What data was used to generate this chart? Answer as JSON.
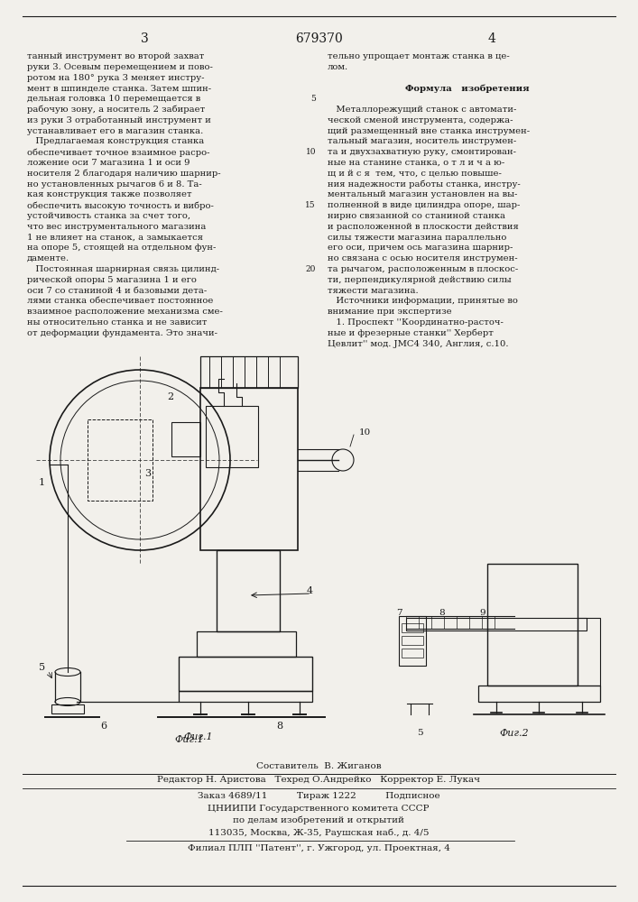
{
  "patent_number": "679370",
  "background_color": "#f2f0eb",
  "text_color": "#1a1a1a",
  "page_left": "3",
  "page_right": "4",
  "left_col_text": [
    [
      "танный инструмент во второй захват",
      false
    ],
    [
      "руки 3. Осевым перемещением и пово-",
      false
    ],
    [
      "ротом на 180° рука 3 меняет инстру-",
      false
    ],
    [
      "мент в шпинделе станка. Затем шпин-",
      false
    ],
    [
      "дельная головка 10 перемещается в",
      false
    ],
    [
      "рабочую зону, а носитель 2 забирает",
      false
    ],
    [
      "из руки 3 отработанный инструмент и",
      false
    ],
    [
      "устанавливает его в магазин станка.",
      false
    ],
    [
      "   Предлагаемая конструкция станка",
      false
    ],
    [
      "обеспечивает точное взаимное расpo-",
      false
    ],
    [
      "ложение оси 7 магазина 1 и оси 9",
      false
    ],
    [
      "носителя 2 благодаря наличию шарнир-",
      false
    ],
    [
      "но установленных рычагов 6 и 8. Та-",
      false
    ],
    [
      "кая конструкция также позволяет",
      false
    ],
    [
      "обеспечить высокую точность и вибро-",
      false
    ],
    [
      "устойчивость станка за счет того,",
      false
    ],
    [
      "что вес инструментального магазина",
      false
    ],
    [
      "1 не влияет на станок, а замыкается",
      false
    ],
    [
      "на опоре 5, стоящей на отдельном фун-",
      false
    ],
    [
      "даменте.",
      false
    ],
    [
      "   Постоянная шарнирная связь цилинд-",
      false
    ],
    [
      "рической опоры 5 магазина 1 и его",
      false
    ],
    [
      "оси 7 со станиной 4 и базовыми дета-",
      false
    ],
    [
      "лями станка обеспечивает постоянное",
      false
    ],
    [
      "взаимное расположение механизма сме-",
      false
    ],
    [
      "ны относительно станка и не зависит",
      false
    ],
    [
      "от деформации фундамента. Это значи-",
      false
    ]
  ],
  "right_col_text": [
    [
      "тельно упрощает монтаж станка в це-",
      false
    ],
    [
      "лом.",
      false
    ],
    [
      "",
      false
    ],
    [
      "     Формула   изобретения",
      true
    ],
    [
      "",
      false
    ],
    [
      "   Металлорежущий станок с автомати-",
      false
    ],
    [
      "ческой сменой инструмента, содержа-",
      false
    ],
    [
      "щий размещенный вне станка инструмен-",
      false
    ],
    [
      "тальный магазин, носитель инструмен-",
      false
    ],
    [
      "та и двухзахватную руку, смонтирован-",
      false
    ],
    [
      "ные на станине станка, о т л и ч а ю-",
      false
    ],
    [
      "щ и й с я  тем, что, с целью повыше-",
      false
    ],
    [
      "ния надежности работы станка, инстру-",
      false
    ],
    [
      "ментальный магазин установлен на вы-",
      false
    ],
    [
      "полненной в виде цилиндра опоре, шар-",
      false
    ],
    [
      "нирно связанной со станиной станка",
      false
    ],
    [
      "и расположенной в плоскости действия",
      false
    ],
    [
      "силы тяжести магазина параллельно",
      false
    ],
    [
      "его оси, причем ось магазина шарнир-",
      false
    ],
    [
      "но связана с осью носителя инструмен-",
      false
    ],
    [
      "та рычагом, расположенным в плоскос-",
      false
    ],
    [
      "ти, перпендикулярной действию силы",
      false
    ],
    [
      "тяжести магазина.",
      false
    ],
    [
      "   Источники информации, принятые во",
      false
    ],
    [
      "внимание при экспертизе",
      false
    ],
    [
      "   1. Проспект ''Координатно-расточ-",
      false
    ],
    [
      "ные и фрезерные станки'' Херберт",
      false
    ],
    [
      "Цевлит'' мод. JMC4 340, Англия, с.10.",
      false
    ]
  ],
  "line_numbers": [
    [
      5,
      5
    ],
    [
      10,
      10
    ],
    [
      15,
      15
    ],
    [
      20,
      20
    ]
  ],
  "composer": "Составитель  В. Жиганов",
  "editor": "Редактор Н. Аристова   Техред О.Андрейко   Корректор Е. Лукач",
  "order": "Заказ 4689/11          Тираж 1222          Подписное",
  "institute": "ЦНИИПИ Государственного комитета СССР",
  "affairs": "по делам изобретений и открытий",
  "address": "113035, Москва, Ж-35, Раушская наб., д. 4/5",
  "filial": "Филиал ПЛП ''Патент'', г. Ужгород, ул. Проектная, 4"
}
